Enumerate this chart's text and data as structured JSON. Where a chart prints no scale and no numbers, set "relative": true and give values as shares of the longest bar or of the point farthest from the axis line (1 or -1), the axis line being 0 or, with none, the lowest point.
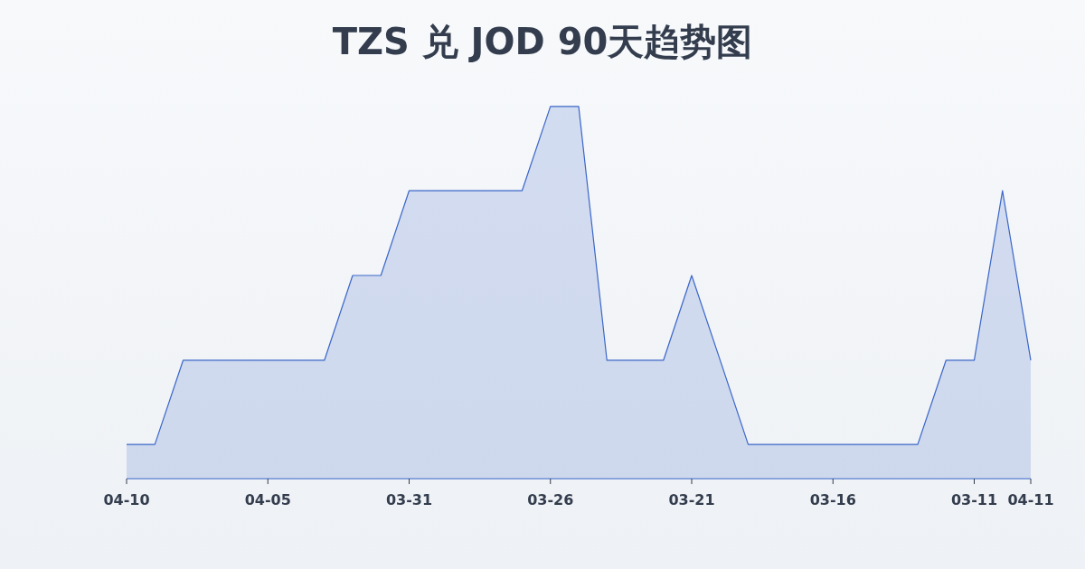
{
  "chart_data": {
    "type": "area",
    "title": "TZS 兑 JOD 90天趋势图",
    "relative": true,
    "categories": [
      "04-10",
      null,
      null,
      null,
      null,
      "04-05",
      null,
      null,
      null,
      null,
      "03-31",
      null,
      null,
      null,
      null,
      "03-26",
      null,
      null,
      null,
      null,
      "03-21",
      null,
      null,
      null,
      null,
      "03-16",
      null,
      null,
      null,
      null,
      "03-11",
      null,
      "04-11"
    ],
    "series": [
      {
        "color": "#3a66c8",
        "values": [
          0.092,
          0.092,
          0.318,
          0.318,
          0.318,
          0.318,
          0.318,
          0.318,
          0.546,
          0.546,
          0.774,
          0.774,
          0.774,
          0.774,
          0.774,
          1,
          1,
          0.318,
          0.318,
          0.318,
          0.546,
          0.32,
          0.092,
          0.092,
          0.092,
          0.092,
          0.092,
          0.092,
          0.092,
          0.318,
          0.318,
          0.774,
          0.318
        ]
      }
    ]
  }
}
